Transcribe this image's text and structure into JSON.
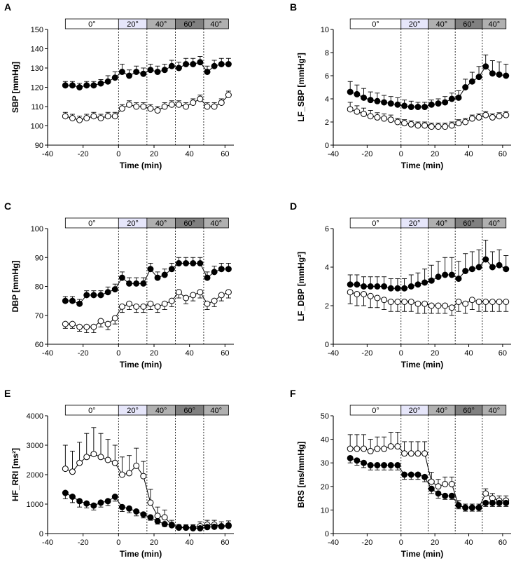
{
  "colors": {
    "background": "#ffffff",
    "ink": "#000000",
    "band_0": "#ffffff",
    "band_20": "#e6e6fa",
    "band_40": "#b0b0b0",
    "band_60": "#808080",
    "band_40b": "#b0b0b0",
    "open_marker_fill": "#ffffff",
    "filled_marker_fill": "#000000"
  },
  "chart_data": [
    {
      "panel": "A",
      "type": "line",
      "ylabel": "SBP [mmHg]",
      "xlabel": "Time (min)",
      "xlim": [
        -40,
        65
      ],
      "ylim": [
        90,
        150
      ],
      "xticks": [
        -40,
        -20,
        0,
        20,
        40,
        60
      ],
      "yticks": [
        90,
        100,
        110,
        120,
        130,
        140,
        150
      ],
      "tilt_bands": [
        {
          "label": "0°",
          "from": -30,
          "to": 0
        },
        {
          "label": "20°",
          "from": 0,
          "to": 16
        },
        {
          "label": "40°",
          "from": 16,
          "to": 32
        },
        {
          "label": "60°",
          "from": 32,
          "to": 48
        },
        {
          "label": "40°",
          "from": 48,
          "to": 62
        }
      ],
      "vlines": [
        0,
        16,
        32,
        48
      ],
      "x": [
        -30,
        -26,
        -22,
        -18,
        -14,
        -10,
        -6,
        -2,
        2,
        6,
        10,
        14,
        18,
        22,
        26,
        30,
        34,
        38,
        42,
        46,
        50,
        54,
        58,
        62
      ],
      "series": [
        {
          "name": "filled",
          "marker": "filled",
          "errdir": 1,
          "values": [
            121,
            121,
            120,
            121,
            121,
            122,
            123,
            125,
            128,
            126,
            128,
            127,
            129,
            128,
            129,
            131,
            130,
            132,
            132,
            133,
            128,
            131,
            132,
            132
          ],
          "err": [
            2,
            2,
            2,
            2,
            2,
            2,
            3,
            3,
            4,
            3,
            3,
            3,
            3,
            3,
            3,
            3,
            3,
            3,
            3,
            3,
            3,
            3,
            3,
            3
          ]
        },
        {
          "name": "open",
          "marker": "open",
          "errdir": 1,
          "values": [
            105,
            104,
            103,
            104,
            105,
            104,
            105,
            105,
            109,
            111,
            110,
            110,
            109,
            108,
            110,
            111,
            111,
            110,
            112,
            114,
            110,
            110,
            112,
            116
          ],
          "err": [
            2,
            2,
            2,
            2,
            2,
            2,
            2,
            2,
            2,
            2,
            2,
            2,
            2,
            2,
            2,
            2,
            2,
            2,
            2,
            2,
            2,
            2,
            2,
            2
          ]
        }
      ]
    },
    {
      "panel": "B",
      "type": "line",
      "ylabel": "LF_SBP [mmHg²]",
      "xlabel": "Time (min)",
      "xlim": [
        -40,
        65
      ],
      "ylim": [
        0,
        10
      ],
      "xticks": [
        -40,
        -20,
        0,
        20,
        40,
        60
      ],
      "yticks": [
        0,
        2,
        4,
        6,
        8,
        10
      ],
      "tilt_bands": [
        {
          "label": "0°",
          "from": -30,
          "to": 0
        },
        {
          "label": "20°",
          "from": 0,
          "to": 16
        },
        {
          "label": "40°",
          "from": 16,
          "to": 32
        },
        {
          "label": "60°",
          "from": 32,
          "to": 48
        },
        {
          "label": "40°",
          "from": 48,
          "to": 62
        }
      ],
      "vlines": [
        0,
        16,
        32,
        48
      ],
      "x": [
        -30,
        -26,
        -22,
        -18,
        -14,
        -10,
        -6,
        -2,
        2,
        6,
        10,
        14,
        18,
        22,
        26,
        30,
        34,
        38,
        42,
        46,
        50,
        54,
        58,
        62
      ],
      "series": [
        {
          "name": "filled",
          "marker": "filled",
          "errdir": 1,
          "values": [
            4.6,
            4.4,
            4.1,
            3.9,
            3.8,
            3.7,
            3.6,
            3.5,
            3.4,
            3.3,
            3.3,
            3.3,
            3.5,
            3.6,
            3.7,
            4.0,
            4.1,
            5.0,
            5.5,
            5.9,
            6.8,
            6.2,
            6.1,
            6.0
          ],
          "err": [
            0.9,
            0.8,
            0.8,
            0.7,
            0.7,
            0.6,
            0.6,
            0.6,
            0.5,
            0.5,
            0.4,
            0.4,
            0.4,
            0.4,
            0.5,
            0.5,
            0.6,
            0.7,
            0.8,
            0.9,
            1.0,
            1.1,
            1.1,
            1.0
          ]
        },
        {
          "name": "open",
          "marker": "open",
          "errdir": 1,
          "values": [
            3.1,
            2.9,
            2.7,
            2.5,
            2.4,
            2.3,
            2.2,
            2.0,
            1.9,
            1.8,
            1.7,
            1.7,
            1.6,
            1.6,
            1.6,
            1.7,
            1.9,
            2.0,
            2.3,
            2.4,
            2.6,
            2.4,
            2.5,
            2.6
          ],
          "err": [
            0.6,
            0.5,
            0.5,
            0.5,
            0.4,
            0.4,
            0.4,
            0.3,
            0.3,
            0.3,
            0.3,
            0.3,
            0.3,
            0.3,
            0.3,
            0.3,
            0.3,
            0.3,
            0.3,
            0.3,
            0.3,
            0.3,
            0.3,
            0.3
          ]
        }
      ]
    },
    {
      "panel": "C",
      "type": "line",
      "ylabel": "DBP [mmHg]",
      "xlabel": "Time (min)",
      "xlim": [
        -40,
        65
      ],
      "ylim": [
        60,
        100
      ],
      "xticks": [
        -40,
        -20,
        0,
        20,
        40,
        60
      ],
      "yticks": [
        60,
        70,
        80,
        90,
        100
      ],
      "tilt_bands": [
        {
          "label": "0°",
          "from": -30,
          "to": 0
        },
        {
          "label": "20°",
          "from": 0,
          "to": 16
        },
        {
          "label": "40°",
          "from": 16,
          "to": 32
        },
        {
          "label": "60°",
          "from": 32,
          "to": 48
        },
        {
          "label": "40°",
          "from": 48,
          "to": 62
        }
      ],
      "vlines": [
        0,
        16,
        32,
        48
      ],
      "x": [
        -30,
        -26,
        -22,
        -18,
        -14,
        -10,
        -6,
        -2,
        2,
        6,
        10,
        14,
        18,
        22,
        26,
        30,
        34,
        38,
        42,
        46,
        50,
        54,
        58,
        62
      ],
      "series": [
        {
          "name": "filled",
          "marker": "filled",
          "errdir": 1,
          "values": [
            75,
            75,
            74,
            77,
            77,
            77,
            78,
            79,
            83,
            81,
            81,
            81,
            86,
            83,
            84,
            86,
            88,
            88,
            88,
            88,
            83,
            85,
            86,
            86
          ],
          "err": [
            1.5,
            1.5,
            1.5,
            1.5,
            1.5,
            1.5,
            1.8,
            1.8,
            2,
            2,
            2,
            2,
            2,
            2,
            2,
            2,
            2,
            2,
            2,
            2,
            2,
            2,
            2,
            2
          ]
        },
        {
          "name": "open",
          "marker": "open",
          "errdir": -1,
          "values": [
            67,
            67,
            66,
            66,
            66,
            68,
            67,
            69,
            73,
            74,
            73,
            73,
            74,
            73,
            74,
            75,
            78,
            76,
            77,
            78,
            74,
            75,
            77,
            78
          ],
          "err": [
            1.5,
            1.5,
            1.5,
            2,
            2,
            2,
            2,
            2,
            2,
            2,
            2,
            2,
            2,
            2,
            2,
            2,
            2,
            2,
            2,
            2,
            2,
            2,
            2,
            2
          ]
        }
      ]
    },
    {
      "panel": "D",
      "type": "line",
      "ylabel": "LF_DBP [mmHg²]",
      "xlabel": "Time (min)",
      "xlim": [
        -40,
        65
      ],
      "ylim": [
        0,
        6
      ],
      "xticks": [
        -40,
        -20,
        0,
        20,
        40,
        60
      ],
      "yticks": [
        0,
        2,
        4,
        6
      ],
      "tilt_bands": [
        {
          "label": "0°",
          "from": -30,
          "to": 0
        },
        {
          "label": "20°",
          "from": 0,
          "to": 16
        },
        {
          "label": "40°",
          "from": 16,
          "to": 32
        },
        {
          "label": "60°",
          "from": 32,
          "to": 48
        },
        {
          "label": "40°",
          "from": 48,
          "to": 62
        }
      ],
      "vlines": [
        0,
        16,
        32,
        48
      ],
      "x": [
        -30,
        -26,
        -22,
        -18,
        -14,
        -10,
        -6,
        -2,
        2,
        6,
        10,
        14,
        18,
        22,
        26,
        30,
        34,
        38,
        42,
        46,
        50,
        54,
        58,
        62
      ],
      "series": [
        {
          "name": "filled",
          "marker": "filled",
          "errdir": 1,
          "values": [
            3.1,
            3.1,
            3.0,
            3.0,
            3.0,
            3.0,
            2.9,
            2.9,
            2.9,
            3.0,
            3.1,
            3.2,
            3.3,
            3.5,
            3.6,
            3.6,
            3.4,
            3.8,
            3.9,
            4.0,
            4.4,
            4.0,
            4.1,
            3.9
          ],
          "err": [
            0.5,
            0.5,
            0.5,
            0.5,
            0.5,
            0.5,
            0.5,
            0.5,
            0.5,
            0.6,
            0.6,
            0.7,
            0.8,
            0.8,
            0.9,
            0.9,
            0.9,
            0.9,
            0.9,
            0.9,
            1.0,
            0.8,
            0.8,
            0.7
          ]
        },
        {
          "name": "open",
          "marker": "open",
          "errdir": -1,
          "values": [
            2.7,
            2.6,
            2.6,
            2.5,
            2.4,
            2.3,
            2.2,
            2.2,
            2.2,
            2.2,
            2.1,
            2.1,
            2.0,
            2.0,
            2.0,
            1.9,
            2.2,
            2.1,
            2.3,
            2.2,
            2.2,
            2.2,
            2.2,
            2.2
          ],
          "err": [
            0.6,
            0.6,
            0.6,
            0.6,
            0.5,
            0.5,
            0.5,
            0.5,
            0.5,
            0.5,
            0.5,
            0.5,
            0.4,
            0.4,
            0.4,
            0.4,
            0.5,
            0.5,
            0.5,
            0.5,
            0.5,
            0.5,
            0.5,
            0.5
          ]
        }
      ]
    },
    {
      "panel": "E",
      "type": "line",
      "ylabel": "HF_RRI [ms²]",
      "xlabel": "Time (min)",
      "xlim": [
        -40,
        65
      ],
      "ylim": [
        0,
        4000
      ],
      "xticks": [
        -40,
        -20,
        0,
        20,
        40,
        60
      ],
      "yticks": [
        0,
        1000,
        2000,
        3000,
        4000
      ],
      "tilt_bands": [
        {
          "label": "0°",
          "from": -30,
          "to": 0
        },
        {
          "label": "20°",
          "from": 0,
          "to": 16
        },
        {
          "label": "40°",
          "from": 16,
          "to": 32
        },
        {
          "label": "60°",
          "from": 32,
          "to": 48
        },
        {
          "label": "40°",
          "from": 48,
          "to": 62
        }
      ],
      "vlines": [
        0,
        16,
        32,
        48
      ],
      "x": [
        -30,
        -26,
        -22,
        -18,
        -14,
        -10,
        -6,
        -2,
        2,
        6,
        10,
        14,
        18,
        22,
        26,
        30,
        34,
        38,
        42,
        46,
        50,
        54,
        58,
        62
      ],
      "series": [
        {
          "name": "open",
          "marker": "open",
          "errdir": 1,
          "values": [
            2200,
            2100,
            2400,
            2600,
            2700,
            2600,
            2500,
            2400,
            2000,
            2050,
            2300,
            1950,
            1050,
            600,
            550,
            300,
            200,
            200,
            200,
            250,
            300,
            300,
            250,
            280
          ],
          "err": [
            800,
            700,
            700,
            800,
            900,
            800,
            700,
            600,
            600,
            600,
            600,
            500,
            450,
            300,
            250,
            150,
            100,
            100,
            100,
            150,
            150,
            150,
            150,
            150
          ]
        },
        {
          "name": "filled",
          "marker": "filled",
          "errdir": -1,
          "values": [
            1380,
            1250,
            1100,
            1020,
            950,
            1050,
            1100,
            1250,
            900,
            850,
            750,
            650,
            550,
            420,
            320,
            280,
            220,
            200,
            180,
            180,
            220,
            230,
            240,
            260
          ],
          "err": [
            200,
            200,
            200,
            150,
            150,
            150,
            150,
            150,
            150,
            150,
            150,
            120,
            100,
            100,
            80,
            60,
            50,
            50,
            40,
            40,
            50,
            50,
            50,
            50
          ]
        }
      ]
    },
    {
      "panel": "F",
      "type": "line",
      "ylabel": "BRS [ms/mmHg]",
      "xlabel": "Time (min)",
      "xlim": [
        -40,
        65
      ],
      "ylim": [
        0,
        50
      ],
      "xticks": [
        -40,
        -20,
        0,
        20,
        40,
        60
      ],
      "yticks": [
        0,
        10,
        20,
        30,
        40,
        50
      ],
      "tilt_bands": [
        {
          "label": "0°",
          "from": -30,
          "to": 0
        },
        {
          "label": "20°",
          "from": 0,
          "to": 16
        },
        {
          "label": "40°",
          "from": 16,
          "to": 32
        },
        {
          "label": "60°",
          "from": 32,
          "to": 48
        },
        {
          "label": "40°",
          "from": 48,
          "to": 62
        }
      ],
      "vlines": [
        0,
        16,
        32,
        48
      ],
      "x": [
        -30,
        -26,
        -22,
        -18,
        -14,
        -10,
        -6,
        -2,
        2,
        6,
        10,
        14,
        18,
        22,
        26,
        30,
        34,
        38,
        42,
        46,
        50,
        54,
        58,
        62
      ],
      "series": [
        {
          "name": "open",
          "marker": "open",
          "errdir": 1,
          "values": [
            36,
            36,
            36,
            35,
            36,
            36,
            37,
            37,
            34,
            34,
            34,
            34,
            22,
            20,
            21,
            21,
            12,
            11,
            11,
            11,
            17,
            15,
            14,
            14
          ],
          "err": [
            6,
            6,
            6,
            5,
            5,
            5,
            6,
            6,
            5,
            5,
            5,
            5,
            4,
            3,
            3,
            3,
            2,
            1.5,
            1.5,
            1.5,
            2,
            2,
            2,
            2
          ]
        },
        {
          "name": "filled",
          "marker": "filled",
          "errdir": -1,
          "values": [
            32,
            31,
            30,
            29,
            29,
            29,
            29,
            29,
            25,
            25,
            25,
            24,
            19,
            17,
            16,
            16,
            12,
            11,
            11,
            11,
            13,
            13,
            13,
            13
          ],
          "err": [
            2,
            2,
            2,
            2,
            2,
            2,
            2,
            2,
            2,
            2,
            2,
            2,
            2,
            2,
            1.5,
            1.5,
            1.5,
            1.5,
            1.5,
            1.5,
            1.5,
            1.5,
            1.5,
            1.5
          ]
        }
      ]
    }
  ]
}
